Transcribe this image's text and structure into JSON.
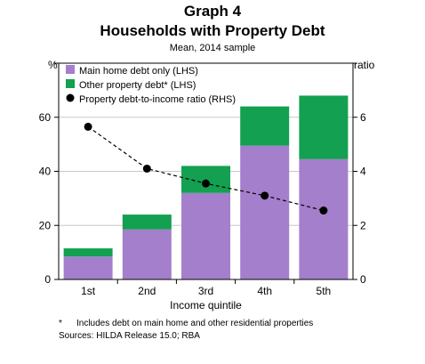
{
  "header": {
    "graph_label": "Graph 4",
    "title": "Households with Property Debt",
    "subtitle": "Mean, 2014 sample",
    "left_unit": "%",
    "right_unit": "ratio"
  },
  "footer": {
    "footnote_marker": "*",
    "footnote": "Includes debt on main home and other residential properties",
    "sources": "Sources:   HILDA Release 15.0; RBA"
  },
  "colors": {
    "main_home": "#a47fcc",
    "other_property": "#13a050",
    "ratio_line": "#000000"
  },
  "chart_data": {
    "type": "bar",
    "stacked": true,
    "xlabel": "Income quintile",
    "categories": [
      "1st",
      "2nd",
      "3rd",
      "4th",
      "5th"
    ],
    "series": [
      {
        "name": "Main home debt only (LHS)",
        "axis": "left",
        "values": [
          8.5,
          18.5,
          32,
          49.5,
          44.5
        ]
      },
      {
        "name": "Other property debt* (LHS)",
        "axis": "left",
        "values": [
          3,
          5.5,
          10,
          14.5,
          23.5
        ]
      },
      {
        "name": "Property debt-to-income ratio (RHS)",
        "axis": "right",
        "type": "line",
        "values": [
          5.65,
          4.1,
          3.55,
          3.1,
          2.55
        ]
      }
    ],
    "ylim_left": [
      0,
      80
    ],
    "ylim_right": [
      0,
      8
    ],
    "yticks_left": [
      "0",
      "20",
      "40",
      "60"
    ],
    "yticks_right": [
      "0",
      "2",
      "4",
      "6"
    ],
    "legend_position": "top-left",
    "grid": true
  }
}
